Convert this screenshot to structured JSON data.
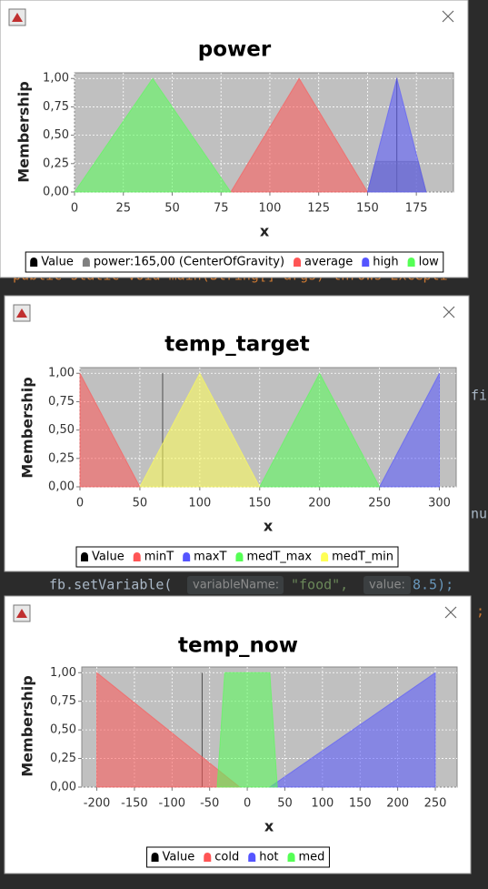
{
  "background_code": {
    "main_line": "public static void main(String[] args) throws Excepti",
    "fragment_1": "fil",
    "fragment_2": "nul",
    "call": "fb.setVariable(",
    "hint_name": "variableName:",
    "arg_name": "\"food\",",
    "hint_value": "value:",
    "arg_value": "8.5);",
    "fragment_3": ";"
  },
  "chart_data": [
    {
      "type": "area",
      "title": "power",
      "x_label": "x",
      "y_label": "Membership",
      "xlim": [
        0,
        194
      ],
      "xticks": [
        0,
        25,
        50,
        75,
        100,
        125,
        150,
        175
      ],
      "ylim": [
        0,
        1.05
      ],
      "yticks": [
        {
          "value": 0,
          "label": "0,00"
        },
        {
          "value": 0.25,
          "label": "0,25"
        },
        {
          "value": 0.5,
          "label": "0,50"
        },
        {
          "value": 0.75,
          "label": "0,75"
        },
        {
          "value": 1,
          "label": "1,00"
        }
      ],
      "grid": true,
      "series": [
        {
          "name": "Value",
          "color": "#000000",
          "x": [
            165,
            165
          ],
          "values": [
            0,
            1
          ]
        },
        {
          "name": "power:165,00 (CenterOfGravity)",
          "color": "#808080",
          "x": [
            150,
            154,
            176,
            180
          ],
          "values": [
            0,
            0.27,
            0.27,
            0
          ]
        },
        {
          "name": "average",
          "color": "#ff5555",
          "x": [
            80,
            115,
            150
          ],
          "values": [
            0,
            1,
            0
          ]
        },
        {
          "name": "high",
          "color": "#5555ff",
          "x": [
            150,
            165,
            180
          ],
          "values": [
            0,
            1,
            0
          ]
        },
        {
          "name": "low",
          "color": "#55ff55",
          "x": [
            0,
            40,
            80
          ],
          "values": [
            0,
            1,
            0
          ]
        }
      ]
    },
    {
      "type": "area",
      "title": "temp_target",
      "x_label": "x",
      "y_label": "Membership",
      "xlim": [
        0,
        314
      ],
      "xticks": [
        0,
        50,
        100,
        150,
        200,
        250,
        300
      ],
      "ylim": [
        0,
        1.05
      ],
      "yticks": [
        {
          "value": 0,
          "label": "0,00"
        },
        {
          "value": 0.25,
          "label": "0,25"
        },
        {
          "value": 0.5,
          "label": "0,50"
        },
        {
          "value": 0.75,
          "label": "0,75"
        },
        {
          "value": 1,
          "label": "1,00"
        }
      ],
      "grid": true,
      "series": [
        {
          "name": "Value",
          "color": "#000000",
          "x": [
            69,
            69
          ],
          "values": [
            0,
            1
          ]
        },
        {
          "name": "minT",
          "color": "#ff5555",
          "x": [
            0,
            0,
            50
          ],
          "values": [
            0,
            1,
            0
          ]
        },
        {
          "name": "maxT",
          "color": "#5555ff",
          "x": [
            250,
            300,
            300
          ],
          "values": [
            0,
            1,
            0
          ]
        },
        {
          "name": "medT_max",
          "color": "#55ff55",
          "x": [
            150,
            200,
            250
          ],
          "values": [
            0,
            1,
            0
          ]
        },
        {
          "name": "medT_min",
          "color": "#ffff55",
          "x": [
            50,
            100,
            150
          ],
          "values": [
            0,
            1,
            0
          ]
        }
      ]
    },
    {
      "type": "area",
      "title": "temp_now",
      "x_label": "x",
      "y_label": "Membership",
      "xlim": [
        -220,
        279
      ],
      "xticks": [
        -200,
        -150,
        -100,
        -50,
        0,
        50,
        100,
        150,
        200,
        250
      ],
      "ylim": [
        0,
        1.05
      ],
      "yticks": [
        {
          "value": 0,
          "label": "0,00"
        },
        {
          "value": 0.25,
          "label": "0,25"
        },
        {
          "value": 0.5,
          "label": "0,50"
        },
        {
          "value": 0.75,
          "label": "0,75"
        },
        {
          "value": 1,
          "label": "1,00"
        }
      ],
      "grid": true,
      "series": [
        {
          "name": "Value",
          "color": "#000000",
          "x": [
            -60,
            -60
          ],
          "values": [
            0,
            1
          ]
        },
        {
          "name": "cold",
          "color": "#ff5555",
          "x": [
            -200,
            -200,
            -10
          ],
          "values": [
            0,
            1,
            0
          ]
        },
        {
          "name": "hot",
          "color": "#5555ff",
          "x": [
            30,
            250,
            250
          ],
          "values": [
            0,
            1,
            0
          ]
        },
        {
          "name": "med",
          "color": "#55ff55",
          "x": [
            -40,
            -30,
            30,
            40
          ],
          "values": [
            0,
            1,
            1,
            0
          ]
        }
      ]
    }
  ]
}
